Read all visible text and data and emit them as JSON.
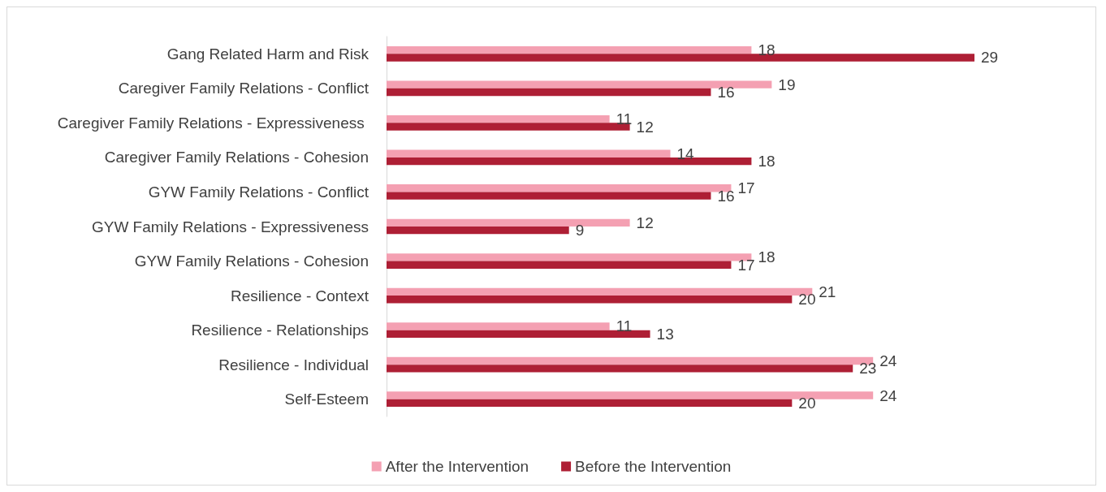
{
  "chart_data": {
    "type": "bar",
    "orientation": "horizontal",
    "data_labels": true,
    "legend": "bottom",
    "categories": [
      "Gang Related Harm and Risk",
      "Caregiver Family Relations - Conflict",
      "Caregiver Family Relations - Expressiveness ",
      "Caregiver Family Relations - Cohesion",
      "GYW Family Relations - Conflict",
      "GYW Family Relations - Expressiveness",
      "GYW Family Relations - Cohesion",
      "Resilience - Context",
      "Resilience - Relationships",
      "Resilience - Individual",
      "Self-Esteem"
    ],
    "series": [
      {
        "name": "After the Intervention",
        "color": "#f4a0b2",
        "values": [
          18,
          19,
          11,
          14,
          17,
          12,
          18,
          21,
          11,
          24,
          24
        ]
      },
      {
        "name": "Before the Intervention",
        "color": "#ae1f35",
        "values": [
          29,
          16,
          12,
          18,
          16,
          9,
          17,
          20,
          13,
          23,
          20
        ]
      }
    ]
  }
}
